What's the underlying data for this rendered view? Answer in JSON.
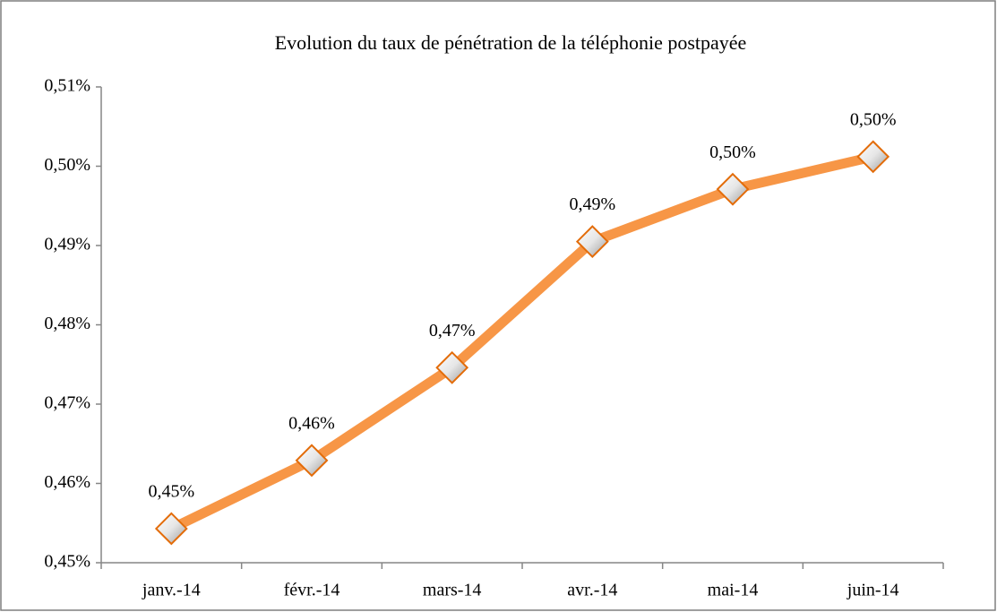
{
  "chart_data": {
    "type": "line",
    "title": "Evolution du taux de pénétration de la téléphonie postpayée",
    "categories": [
      "janv.-14",
      "févr.-14",
      "mars-14",
      "avr.-14",
      "mai-14",
      "juin-14"
    ],
    "series": [
      {
        "name": "Taux de pénétration",
        "color": "#f79646",
        "values": [
          0.4543,
          0.4629,
          0.4746,
          0.4905,
          0.4971,
          0.5012
        ],
        "value_labels": [
          "0,45%",
          "0,46%",
          "0,47%",
          "0,49%",
          "0,50%",
          "0,50%"
        ]
      }
    ],
    "ylim": [
      0.45,
      0.51
    ],
    "yticks": [
      {
        "value": 0.45,
        "label": "0,45%"
      },
      {
        "value": 0.46,
        "label": "0,46%"
      },
      {
        "value": 0.47,
        "label": "0,47%"
      },
      {
        "value": 0.48,
        "label": "0,48%"
      },
      {
        "value": 0.49,
        "label": "0,49%"
      },
      {
        "value": 0.5,
        "label": "0,50%"
      },
      {
        "value": 0.51,
        "label": "0,51%"
      }
    ],
    "grid": false
  }
}
